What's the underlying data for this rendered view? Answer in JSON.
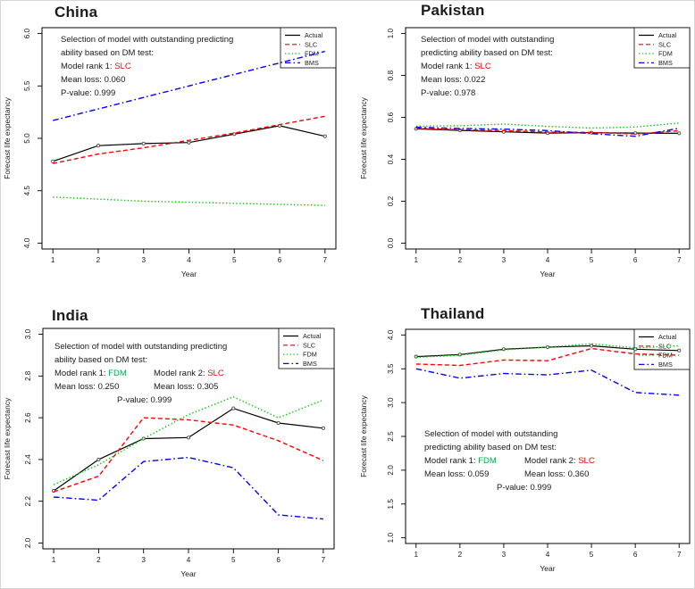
{
  "figure": {
    "background": "#ffffff",
    "border_color": "#d6d6d6"
  },
  "colors": {
    "actual_line": "#000000",
    "slc_line": "#ff0000",
    "fdm_line": "#00cc00",
    "bms_line": "#0000ff",
    "fdm_text": "#00b050",
    "slc_text": "#ff0000",
    "axis_text": "#1a1a1a"
  },
  "chart_data": [
    {
      "type": "line",
      "title": "China",
      "xlabel": "Year",
      "ylabel": "Forecast life expectancy",
      "x": [
        1,
        2,
        3,
        4,
        5,
        6,
        7
      ],
      "xticks": [
        "1",
        "2",
        "3",
        "4",
        "5",
        "6",
        "7"
      ],
      "ylim": [
        4.0,
        6.0
      ],
      "yticks": [
        "4.0",
        "4.5",
        "5.0",
        "5.5",
        "6.0"
      ],
      "grid": false,
      "legend_position": "top-right",
      "legend_labels": [
        "Actual",
        "SLC",
        "FDM",
        "BMS"
      ],
      "series": [
        {
          "name": "Actual",
          "color": "#000000",
          "style": "solid",
          "marker": "circle",
          "values": [
            4.78,
            4.93,
            4.95,
            4.96,
            5.04,
            5.12,
            5.02
          ]
        },
        {
          "name": "SLC",
          "color": "#ff0000",
          "style": "dashed",
          "marker": "none",
          "values": [
            4.76,
            4.85,
            4.91,
            4.98,
            5.05,
            5.13,
            5.21
          ]
        },
        {
          "name": "FDM",
          "color": "#00cc00",
          "style": "dotted",
          "marker": "none",
          "values": [
            4.44,
            4.42,
            4.4,
            4.39,
            4.38,
            4.37,
            4.36
          ]
        },
        {
          "name": "BMS",
          "color": "#0000ff",
          "style": "dashdot",
          "marker": "none",
          "values": [
            5.17,
            5.28,
            5.39,
            5.5,
            5.61,
            5.72,
            5.83
          ]
        }
      ],
      "annotation": {
        "intro_lines": [
          "Selection of model with outstanding predicting",
          "ability based on DM test:"
        ],
        "models": [
          {
            "rank_label": "Model rank 1:",
            "name": "SLC",
            "name_color": "#ff0000",
            "mean_loss_label": "Mean loss:",
            "mean_loss": "0.060"
          }
        ],
        "p_value_label": "P-value:",
        "p_value": "0.999"
      }
    },
    {
      "type": "line",
      "title": "Pakistan",
      "xlabel": "Year",
      "ylabel": "Forecast life expectancy",
      "x": [
        1,
        2,
        3,
        4,
        5,
        6,
        7
      ],
      "xticks": [
        "1",
        "2",
        "3",
        "4",
        "5",
        "6",
        "7"
      ],
      "ylim": [
        0.0,
        1.0
      ],
      "yticks": [
        "0.0",
        "0.2",
        "0.4",
        "0.6",
        "0.8",
        "1.0"
      ],
      "grid": false,
      "legend_position": "top-right",
      "legend_labels": [
        "Actual",
        "SLC",
        "FDM",
        "BMS"
      ],
      "series": [
        {
          "name": "Actual",
          "color": "#000000",
          "style": "solid",
          "marker": "circle",
          "values": [
            0.545,
            0.538,
            0.531,
            0.525,
            0.527,
            0.525,
            0.524
          ]
        },
        {
          "name": "SLC",
          "color": "#ff0000",
          "style": "dashed",
          "marker": "none",
          "values": [
            0.548,
            0.541,
            0.537,
            0.53,
            0.528,
            0.521,
            0.536
          ]
        },
        {
          "name": "FDM",
          "color": "#00cc00",
          "style": "dotted",
          "marker": "none",
          "values": [
            0.558,
            0.56,
            0.568,
            0.557,
            0.549,
            0.554,
            0.573
          ]
        },
        {
          "name": "BMS",
          "color": "#0000ff",
          "style": "dashdot",
          "marker": "none",
          "values": [
            0.553,
            0.547,
            0.544,
            0.537,
            0.522,
            0.51,
            0.548
          ]
        }
      ],
      "annotation": {
        "intro_lines": [
          "Selection of model with outstanding",
          "predicting ability based on DM test:"
        ],
        "models": [
          {
            "rank_label": "Model rank 1:",
            "name": "SLC",
            "name_color": "#ff0000",
            "mean_loss_label": "Mean loss:",
            "mean_loss": "0.022"
          }
        ],
        "p_value_label": "P-value:",
        "p_value": "0.978"
      }
    },
    {
      "type": "line",
      "title": "India",
      "xlabel": "Year",
      "ylabel": "Forecast life expectancy",
      "x": [
        1,
        2,
        3,
        4,
        5,
        6,
        7
      ],
      "xticks": [
        "1",
        "2",
        "3",
        "4",
        "5",
        "6",
        "7"
      ],
      "ylim": [
        2.0,
        3.0
      ],
      "yticks": [
        "2.0",
        "2.2",
        "2.4",
        "2.6",
        "2.8",
        "3.0"
      ],
      "grid": false,
      "legend_position": "top-right",
      "legend_labels": [
        "Actual",
        "SLC",
        "FDM",
        "BMS"
      ],
      "series": [
        {
          "name": "Actual",
          "color": "#000000",
          "style": "solid",
          "marker": "circle",
          "values": [
            2.25,
            2.4,
            2.5,
            2.505,
            2.645,
            2.575,
            2.55
          ]
        },
        {
          "name": "SLC",
          "color": "#ff0000",
          "style": "dashed",
          "marker": "none",
          "values": [
            2.245,
            2.32,
            2.6,
            2.59,
            2.565,
            2.49,
            2.395
          ]
        },
        {
          "name": "FDM",
          "color": "#00cc00",
          "style": "dotted",
          "marker": "none",
          "values": [
            2.28,
            2.375,
            2.5,
            2.615,
            2.7,
            2.6,
            2.685
          ]
        },
        {
          "name": "BMS",
          "color": "#0000ff",
          "style": "dashdot",
          "marker": "none",
          "values": [
            2.22,
            2.205,
            2.39,
            2.41,
            2.36,
            2.135,
            2.115
          ]
        }
      ],
      "annotation": {
        "intro_lines": [
          "Selection of model with outstanding predicting",
          "ability based on DM test:"
        ],
        "models": [
          {
            "rank_label": "Model rank 1:",
            "name": "FDM",
            "name_color": "#00b050",
            "mean_loss_label": "Mean loss:",
            "mean_loss": "0.250"
          },
          {
            "rank_label": "Model rank 2:",
            "name": "SLC",
            "name_color": "#ff0000",
            "mean_loss_label": "Mean loss:",
            "mean_loss": "0.305"
          }
        ],
        "p_value_label": "P-value:",
        "p_value": "0.999"
      }
    },
    {
      "type": "line",
      "title": "Thailand",
      "xlabel": "Year",
      "ylabel": "Forecast life expectancy",
      "x": [
        1,
        2,
        3,
        4,
        5,
        6,
        7
      ],
      "xticks": [
        "1",
        "2",
        "3",
        "4",
        "5",
        "6",
        "7"
      ],
      "ylim": [
        1.0,
        4.0
      ],
      "yticks": [
        "1.0",
        "1.5",
        "2.0",
        "2.5",
        "3.0",
        "3.5",
        "4.0"
      ],
      "grid": false,
      "legend_position": "top-right",
      "legend_labels": [
        "Actual",
        "SLC",
        "FDM",
        "BMS"
      ],
      "series": [
        {
          "name": "Actual",
          "color": "#000000",
          "style": "solid",
          "marker": "circle",
          "values": [
            3.68,
            3.71,
            3.79,
            3.82,
            3.84,
            3.79,
            3.77
          ]
        },
        {
          "name": "SLC",
          "color": "#ff0000",
          "style": "dashed",
          "marker": "none",
          "values": [
            3.57,
            3.55,
            3.63,
            3.62,
            3.8,
            3.72,
            3.7
          ]
        },
        {
          "name": "FDM",
          "color": "#00cc00",
          "style": "dotted",
          "marker": "none",
          "values": [
            3.67,
            3.7,
            3.78,
            3.82,
            3.87,
            3.81,
            3.84
          ]
        },
        {
          "name": "BMS",
          "color": "#0000ff",
          "style": "dashdot",
          "marker": "none",
          "values": [
            3.5,
            3.36,
            3.43,
            3.41,
            3.48,
            3.15,
            3.11
          ]
        }
      ],
      "annotation": {
        "intro_lines": [
          "Selection of model with outstanding",
          "predicting ability based on DM test:"
        ],
        "models": [
          {
            "rank_label": "Model rank 1:",
            "name": "FDM",
            "name_color": "#00b050",
            "mean_loss_label": "Mean loss:",
            "mean_loss": "0.059"
          },
          {
            "rank_label": "Model rank 2:",
            "name": "SLC",
            "name_color": "#ff0000",
            "mean_loss_label": "Mean loss:",
            "mean_loss": "0.360"
          }
        ],
        "p_value_label": "P-value:",
        "p_value": "0.999"
      }
    }
  ]
}
